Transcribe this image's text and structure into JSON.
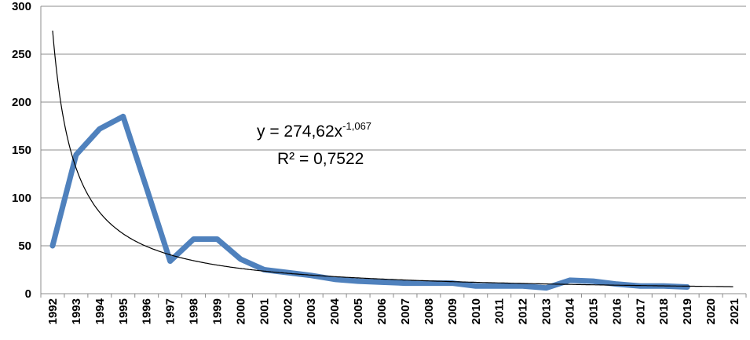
{
  "chart_data": {
    "type": "line",
    "x": [
      "1992",
      "1993",
      "1994",
      "1995",
      "1996",
      "1997",
      "1998",
      "1999",
      "2000",
      "2001",
      "2002",
      "2003",
      "2004",
      "2005",
      "2006",
      "2007",
      "2008",
      "2009",
      "2010",
      "2011",
      "2012",
      "2013",
      "2014",
      "2015",
      "2016",
      "2017",
      "2018",
      "2019",
      "2020",
      "2021"
    ],
    "series": [
      {
        "values": [
          50,
          145,
          172,
          185,
          110,
          34,
          57,
          57,
          36,
          25,
          22,
          19,
          15,
          13,
          12,
          11,
          11,
          11,
          8,
          8,
          8,
          6,
          14,
          13,
          10,
          8,
          8,
          7,
          null,
          null
        ],
        "color": "#4f81bd"
      },
      {
        "trendline": "power",
        "coef_a": 274.62,
        "coef_b": -1.067,
        "color": "#000000"
      }
    ],
    "ylim": [
      0,
      300
    ],
    "yticks": [
      "0",
      "50",
      "100",
      "150",
      "200",
      "250",
      "300"
    ],
    "grid": true,
    "equation": {
      "line1_prefix": "y = 274,62x",
      "line1_exponent": "-1,067",
      "line2": "R² = 0,7522"
    }
  }
}
